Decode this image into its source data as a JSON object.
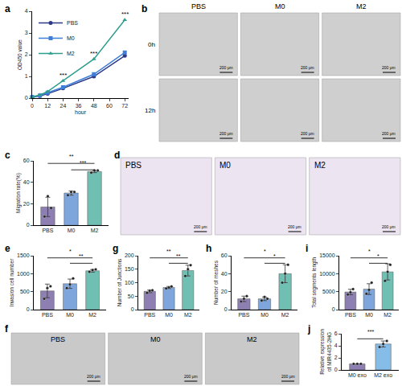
{
  "chart_data": [
    {
      "type": "line",
      "panel": "a",
      "x_label": "hour",
      "y_label": "OD450 value",
      "x": [
        0,
        6,
        12,
        24,
        48,
        72
      ],
      "series": [
        {
          "name": "PBS",
          "color": "#2e3a87",
          "marker": "circle",
          "values": [
            0.05,
            0.1,
            0.2,
            0.45,
            1.0,
            1.95
          ]
        },
        {
          "name": "M0",
          "color": "#3f7fd8",
          "marker": "square",
          "values": [
            0.05,
            0.12,
            0.25,
            0.5,
            1.1,
            2.1
          ]
        },
        {
          "name": "M2",
          "color": "#2f9e8f",
          "marker": "triangle-up",
          "values": [
            0.05,
            0.15,
            0.3,
            0.8,
            1.8,
            3.6
          ]
        }
      ],
      "significance": [
        {
          "x": 24,
          "text": "***"
        },
        {
          "x": 48,
          "text": "***"
        },
        {
          "x": 72,
          "text": "***"
        }
      ],
      "xlim": [
        0,
        75
      ],
      "xticks": [
        0,
        12,
        24,
        36,
        48,
        60,
        72
      ],
      "ylim": [
        0,
        4
      ],
      "yticks": [
        0,
        1,
        2,
        3,
        4
      ],
      "legend": "upper left",
      "grid": false
    },
    {
      "type": "image",
      "panel": "b",
      "columns": [
        "PBS",
        "M0",
        "M2"
      ],
      "rows": [
        "0h",
        "12h"
      ],
      "scale_bar": "200 μm"
    },
    {
      "type": "bar",
      "panel": "c",
      "y_label": "Migration rate(%)",
      "categories": [
        "PBS",
        "M0",
        "M2"
      ],
      "values": [
        17,
        30,
        50
      ],
      "errors": [
        9,
        2,
        1
      ],
      "points": [
        [
          8,
          27,
          16
        ],
        [
          28,
          31,
          31
        ],
        [
          49,
          51,
          51
        ]
      ],
      "colors": [
        "#8e7fb3",
        "#7fa6dc",
        "#6fbfb3"
      ],
      "significance": [
        {
          "from": 1,
          "to": 2,
          "text": "***"
        },
        {
          "from": 0,
          "to": 2,
          "text": "**"
        }
      ],
      "ylim": [
        0,
        60
      ],
      "yticks": [
        0,
        20,
        40,
        60
      ],
      "grid": false
    },
    {
      "type": "image",
      "panel": "d",
      "columns": [
        "PBS",
        "M0",
        "M2"
      ],
      "scale_bar": "200 μm"
    },
    {
      "type": "bar",
      "panel": "e",
      "y_label": "Invasion cell number",
      "categories": [
        "PBS",
        "M0",
        "M2"
      ],
      "values": [
        520,
        720,
        1080
      ],
      "errors": [
        190,
        130,
        35
      ],
      "points": [
        [
          300,
          600,
          650
        ],
        [
          600,
          700,
          870
        ],
        [
          1050,
          1100,
          1120
        ]
      ],
      "colors": [
        "#8e7fb3",
        "#7fa6dc",
        "#6fbfb3"
      ],
      "significance": [
        {
          "from": 1,
          "to": 2,
          "text": "**"
        },
        {
          "from": 0,
          "to": 2,
          "text": "*"
        }
      ],
      "ylim": [
        0,
        1500
      ],
      "yticks": [
        0,
        500,
        1000,
        1500
      ],
      "grid": false
    },
    {
      "type": "bar",
      "panel": "g",
      "y_label": "Number of Junctions",
      "categories": [
        "PBS",
        "M0",
        "M2"
      ],
      "values": [
        68,
        82,
        145
      ],
      "errors": [
        5,
        4,
        20
      ],
      "points": [
        [
          62,
          70,
          72
        ],
        [
          78,
          82,
          86
        ],
        [
          125,
          150,
          165
        ]
      ],
      "colors": [
        "#8e7fb3",
        "#7fa6dc",
        "#6fbfb3"
      ],
      "significance": [
        {
          "from": 1,
          "to": 2,
          "text": "**"
        },
        {
          "from": 0,
          "to": 2,
          "text": "**"
        }
      ],
      "ylim": [
        0,
        200
      ],
      "yticks": [
        0,
        50,
        100,
        150,
        200
      ],
      "grid": false
    },
    {
      "type": "bar",
      "panel": "h",
      "y_label": "Number of meshes",
      "categories": [
        "PBS",
        "M0",
        "M2"
      ],
      "values": [
        12,
        12,
        40
      ],
      "errors": [
        3,
        2,
        10
      ],
      "points": [
        [
          9,
          12,
          15
        ],
        [
          10,
          14,
          12
        ],
        [
          30,
          40,
          50
        ]
      ],
      "colors": [
        "#8e7fb3",
        "#7fa6dc",
        "#6fbfb3"
      ],
      "significance": [
        {
          "from": 1,
          "to": 2,
          "text": "*"
        },
        {
          "from": 0,
          "to": 2,
          "text": "*"
        }
      ],
      "ylim": [
        0,
        60
      ],
      "yticks": [
        0,
        20,
        40,
        60
      ],
      "grid": false
    },
    {
      "type": "bar",
      "panel": "i",
      "y_label": "Total segments length",
      "categories": [
        "PBS",
        "M0",
        "M2"
      ],
      "values": [
        4900,
        5700,
        10500
      ],
      "errors": [
        750,
        1500,
        2250
      ],
      "points": [
        [
          4200,
          4800,
          5700
        ],
        [
          4400,
          5500,
          7500
        ],
        [
          8000,
          10500,
          12500
        ]
      ],
      "colors": [
        "#8e7fb3",
        "#7fa6dc",
        "#6fbfb3"
      ],
      "significance": [
        {
          "from": 1,
          "to": 2,
          "text": "*"
        },
        {
          "from": 0,
          "to": 2,
          "text": "*"
        }
      ],
      "ylim": [
        0,
        15000
      ],
      "yticks": [
        0,
        5000,
        10000,
        15000
      ],
      "grid": false
    },
    {
      "type": "image",
      "panel": "f",
      "columns": [
        "PBS",
        "M0",
        "M2"
      ],
      "scale_bar": "200 μm"
    },
    {
      "type": "bar",
      "panel": "j",
      "y_label": "Relative expression of MIR4435-2HG",
      "categories": [
        "M0 exo",
        "M2 exo"
      ],
      "values": [
        1.0,
        4.3
      ],
      "errors": [
        0,
        0.5
      ],
      "points": [
        [
          1,
          1,
          1
        ],
        [
          3.8,
          4.3,
          4.8
        ]
      ],
      "colors": [
        "#8e7fb3",
        "#86bde8"
      ],
      "significance": [
        {
          "from": 0,
          "to": 1,
          "text": "***"
        }
      ],
      "ylim": [
        0,
        6
      ],
      "yticks": [
        0,
        2,
        4,
        6
      ],
      "grid": false
    }
  ]
}
